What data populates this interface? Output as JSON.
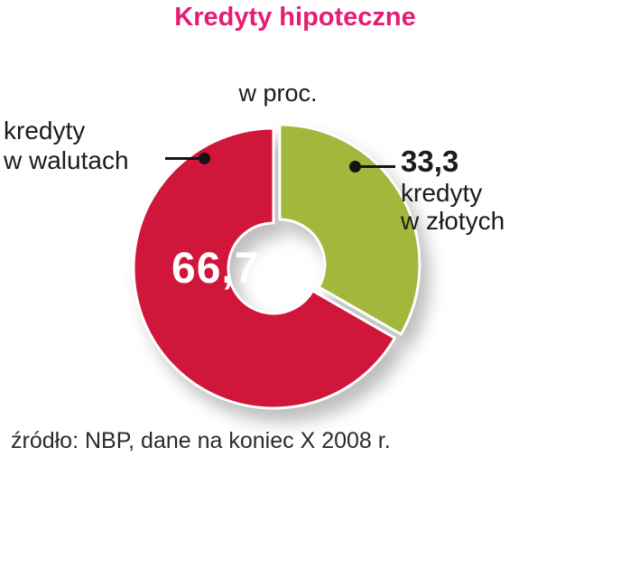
{
  "title": "Kredyty hipoteczne",
  "subtitle": "w proc.",
  "source": "źródło: NBP, dane na koniec X 2008 r.",
  "colors": {
    "title_pink": "#e61b72",
    "red_slice": "#d0163a",
    "green_slice": "#a1b83d",
    "text": "#1b1b1b",
    "center_value_text": "#ffffff"
  },
  "labels": {
    "left_line1": "kredyty",
    "left_line2": "w walutach",
    "right_value": "33,3",
    "right_line1": "kredyty",
    "right_line2": "w złotych",
    "center_value": "66,7"
  },
  "chart_data": {
    "type": "pie",
    "donut": true,
    "unit": "percent",
    "title": "Kredyty hipoteczne",
    "subtitle": "w proc.",
    "start_angle_deg": 0,
    "direction": "clockwise",
    "inner_radius_ratio": 0.32,
    "slices": [
      {
        "label": "kredyty w złotych",
        "value": 33.3,
        "display": "33,3",
        "color": "#a1b83d",
        "explode": 8
      },
      {
        "label": "kredyty w walutach",
        "value": 66.7,
        "display": "66,7",
        "color": "#d0163a",
        "explode": 0
      }
    ],
    "source": "źródło: NBP, dane na koniec X 2008 r.",
    "legend_position": "callouts"
  }
}
